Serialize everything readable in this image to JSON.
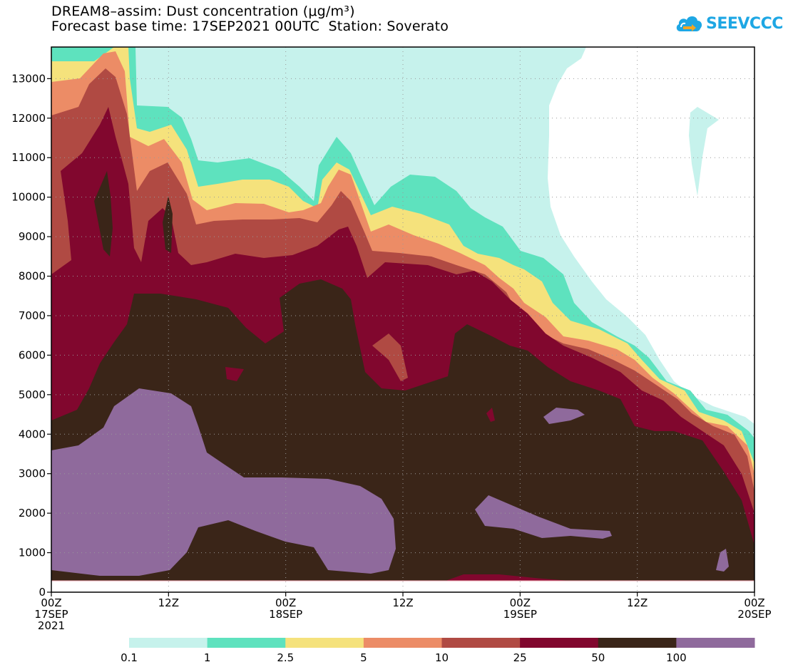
{
  "title": {
    "line1": "DREAM8–assim: Dust concentration (μg/m³)",
    "line2": "Forecast base time: 17SEP2021 00UTC  Station: Soverato"
  },
  "logo": {
    "text": "SEEVCCC",
    "icon": "cloud-icon"
  },
  "chart_data": {
    "type": "contour",
    "title": "DREAM8–assim: Dust concentration (μg/m³)",
    "subtitle": "Forecast base time: 17SEP2021 00UTC  Station: Soverato",
    "xlabel": "",
    "ylabel": "",
    "x_range_hours": [
      0,
      72
    ],
    "ylim": [
      0,
      13800
    ],
    "grid": true,
    "y_ticks": [
      0,
      1000,
      2000,
      3000,
      4000,
      5000,
      6000,
      7000,
      8000,
      9000,
      10000,
      11000,
      12000,
      13000
    ],
    "x_ticks": [
      {
        "hour": 0,
        "lines": [
          "00Z",
          "17SEP",
          "2021"
        ]
      },
      {
        "hour": 12,
        "lines": [
          "12Z"
        ]
      },
      {
        "hour": 24,
        "lines": [
          "00Z",
          "18SEP"
        ]
      },
      {
        "hour": 36,
        "lines": [
          "12Z"
        ]
      },
      {
        "hour": 48,
        "lines": [
          "00Z",
          "19SEP"
        ]
      },
      {
        "hour": 60,
        "lines": [
          "12Z"
        ]
      },
      {
        "hour": 72,
        "lines": [
          "00Z",
          "20SEP"
        ]
      }
    ],
    "levels": [
      "0.1",
      "1",
      "2.5",
      "5",
      "10",
      "25",
      "50",
      "100"
    ],
    "colors": [
      "#c6f2ec",
      "#5ee2be",
      "#f5e27c",
      "#ec8c66",
      "#b04a43",
      "#81072e",
      "#3a2518",
      "#8f6a9c"
    ],
    "ground_height_m": 300,
    "approx_profile_tops_m": [
      {
        "hour": 0,
        "top_0.1": 13800,
        "top_50": 4300
      },
      {
        "hour": 24,
        "top_0.1": 13800,
        "top_50": 7400
      },
      {
        "hour": 48,
        "top_0.1": 13800,
        "top_50": 6300
      },
      {
        "hour": 72,
        "top_0.1": 4300,
        "top_50": 1200
      }
    ]
  }
}
